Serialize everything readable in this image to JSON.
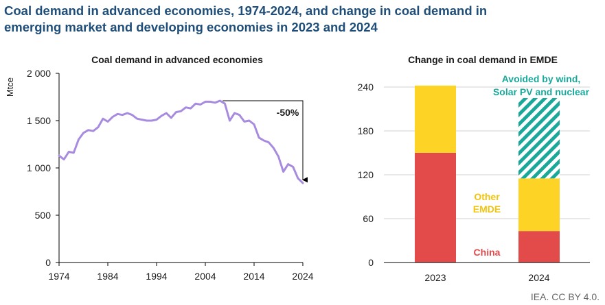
{
  "title_lines": [
    "Coal demand in advanced economies, 1974-2024, and change in coal demand in",
    "emerging market and developing economies in 2023 and 2024"
  ],
  "credit": "IEA. CC BY 4.0.",
  "chart_data": [
    {
      "type": "line",
      "title": "Coal demand in advanced economies",
      "ylabel": "Mtce",
      "xlim": [
        1974,
        2024
      ],
      "ylim": [
        0,
        2000
      ],
      "xticks": [
        1974,
        1984,
        1994,
        2004,
        2014,
        2024
      ],
      "xtick_labels": [
        "1974",
        "1984",
        "1994",
        "2004",
        "2014",
        "2024"
      ],
      "yticks": [
        0,
        500,
        1000,
        1500,
        2000
      ],
      "ytick_labels": [
        "0",
        "500",
        "1 000",
        "1 500",
        "2 000"
      ],
      "line_color": "#a78bdf",
      "series": [
        {
          "x": [
            1974,
            1975,
            1976,
            1977,
            1978,
            1979,
            1980,
            1981,
            1982,
            1983,
            1984,
            1985,
            1986,
            1987,
            1988,
            1989,
            1990,
            1991,
            1992,
            1993,
            1994,
            1995,
            1996,
            1997,
            1998,
            1999,
            2000,
            2001,
            2002,
            2003,
            2004,
            2005,
            2006,
            2007,
            2008,
            2009,
            2010,
            2011,
            2012,
            2013,
            2014,
            2015,
            2016,
            2017,
            2018,
            2019,
            2020,
            2021,
            2022,
            2023,
            2024
          ],
          "y": [
            1130,
            1090,
            1170,
            1160,
            1300,
            1370,
            1400,
            1390,
            1430,
            1520,
            1490,
            1540,
            1570,
            1560,
            1580,
            1560,
            1520,
            1510,
            1500,
            1500,
            1510,
            1550,
            1580,
            1530,
            1590,
            1600,
            1640,
            1630,
            1680,
            1670,
            1700,
            1700,
            1690,
            1710,
            1680,
            1500,
            1580,
            1560,
            1490,
            1500,
            1460,
            1320,
            1290,
            1270,
            1210,
            1120,
            960,
            1040,
            1010,
            890,
            840
          ]
        }
      ],
      "annotation": {
        "label": "-50%",
        "from": [
          2007,
          1710
        ],
        "to": [
          2024,
          860
        ]
      }
    },
    {
      "type": "bar",
      "stacked": true,
      "title": "Change in coal demand in EMDE",
      "categories": [
        "2023",
        "2024"
      ],
      "ylim": [
        0,
        240
      ],
      "yticks": [
        0,
        60,
        120,
        180,
        240
      ],
      "ytick_labels": [
        "0",
        "60",
        "120",
        "180",
        "240"
      ],
      "series": [
        {
          "name": "China",
          "values": [
            150,
            43
          ],
          "color": "#e34b4b"
        },
        {
          "name": "Other EMDE",
          "values": [
            92,
            72
          ],
          "color": "#fdd425"
        },
        {
          "name": "Avoided by wind, Solar PV and nuclear",
          "values": [
            0,
            110
          ],
          "color": "#1aa89a",
          "pattern": "hatch"
        }
      ],
      "labels": {
        "china": "China",
        "other_line1": "Other",
        "other_line2": "EMDE",
        "avoided_line1": "Avoided by wind,",
        "avoided_line2": "Solar PV and nuclear"
      }
    }
  ]
}
